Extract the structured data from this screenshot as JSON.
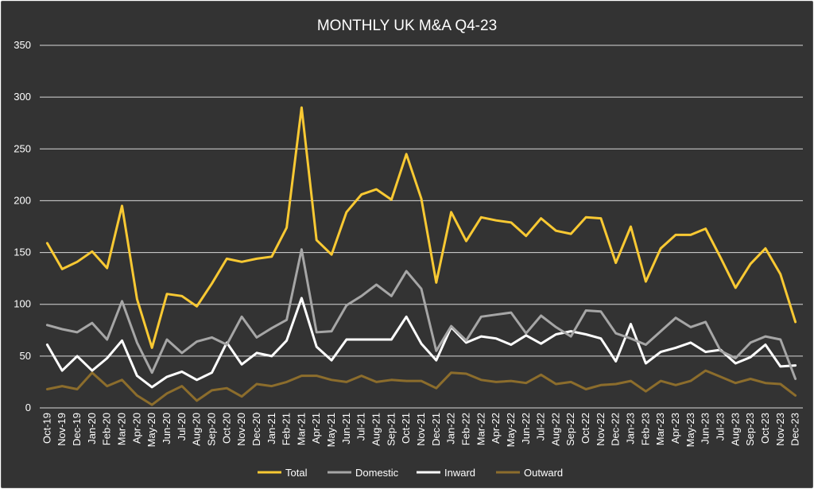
{
  "chart_data": {
    "type": "line",
    "title": "MONTHLY UK M&A Q4-23",
    "xlabel": "",
    "ylabel": "",
    "ylim": [
      0,
      350
    ],
    "yticks": [
      0,
      50,
      100,
      150,
      200,
      250,
      300,
      350
    ],
    "grid": "horizontal",
    "legend_position": "bottom",
    "background": "#333333",
    "categories": [
      "Oct-19",
      "Nov-19",
      "Dec-19",
      "Jan-20",
      "Feb-20",
      "Mar-20",
      "Apr-20",
      "May-20",
      "Jun-20",
      "Jul-20",
      "Aug-20",
      "Sep-20",
      "Oct-20",
      "Nov-20",
      "Dec-20",
      "Jan-21",
      "Feb-21",
      "Mar-21",
      "Apr-21",
      "May-21",
      "Jun-21",
      "Jul-21",
      "Aug-21",
      "Sep-21",
      "Oct-21",
      "Nov-21",
      "Dec-21",
      "Jan-22",
      "Feb-22",
      "Mar-22",
      "Apr-22",
      "May-22",
      "Jun-22",
      "Jul-22",
      "Aug-22",
      "Sep-22",
      "Oct-22",
      "Nov-22",
      "Dec-22",
      "Jan-23",
      "Feb-23",
      "Mar-23",
      "Apr-23",
      "May-23",
      "Jun-23",
      "Jul-23",
      "Aug-23",
      "Sep-23",
      "Oct-23",
      "Nov-23",
      "Dec-23"
    ],
    "series": [
      {
        "name": "Total",
        "color": "#f9c933",
        "values": [
          159,
          134,
          141,
          151,
          135,
          195,
          105,
          58,
          110,
          108,
          98,
          120,
          144,
          141,
          144,
          146,
          174,
          290,
          162,
          148,
          189,
          206,
          211,
          201,
          245,
          202,
          121,
          189,
          161,
          184,
          181,
          179,
          166,
          183,
          171,
          168,
          184,
          183,
          140,
          175,
          122,
          154,
          167,
          167,
          173,
          145,
          116,
          139,
          154,
          129,
          83
        ]
      },
      {
        "name": "Domestic",
        "color": "#a6a6a6",
        "values": [
          80,
          76,
          73,
          82,
          66,
          103,
          63,
          34,
          66,
          53,
          64,
          68,
          61,
          88,
          68,
          77,
          85,
          153,
          73,
          74,
          99,
          108,
          119,
          108,
          132,
          115,
          55,
          79,
          65,
          88,
          90,
          92,
          72,
          89,
          78,
          69,
          94,
          93,
          72,
          67,
          61,
          74,
          87,
          78,
          83,
          55,
          48,
          63,
          69,
          66,
          28
        ]
      },
      {
        "name": "Inward",
        "color": "#ffffff",
        "values": [
          61,
          36,
          50,
          36,
          48,
          65,
          31,
          20,
          30,
          35,
          27,
          34,
          63,
          42,
          53,
          50,
          65,
          106,
          59,
          46,
          66,
          66,
          66,
          66,
          88,
          62,
          46,
          78,
          63,
          69,
          67,
          61,
          70,
          62,
          71,
          74,
          71,
          67,
          45,
          81,
          43,
          54,
          58,
          63,
          54,
          56,
          43,
          49,
          61,
          40,
          41
        ]
      },
      {
        "name": "Outward",
        "color": "#8c6d2c",
        "values": [
          18,
          21,
          18,
          34,
          21,
          27,
          12,
          3,
          14,
          21,
          7,
          17,
          19,
          11,
          23,
          21,
          25,
          31,
          31,
          27,
          25,
          31,
          25,
          27,
          26,
          26,
          19,
          34,
          33,
          27,
          25,
          26,
          24,
          32,
          23,
          25,
          18,
          22,
          23,
          26,
          16,
          26,
          22,
          26,
          36,
          30,
          24,
          28,
          24,
          23,
          12
        ]
      }
    ]
  }
}
